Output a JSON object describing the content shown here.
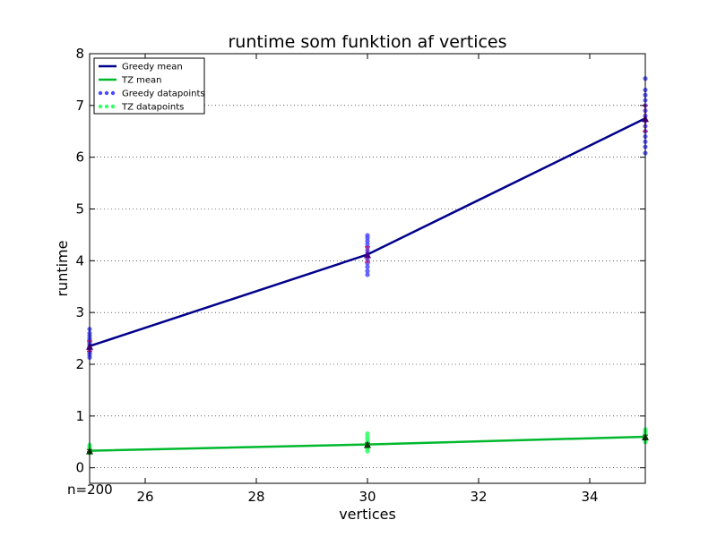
{
  "chart_data": {
    "type": "line",
    "title": "runtime som funktion af vertices",
    "xlabel": "vertices",
    "ylabel": "runtime",
    "xlim": [
      25,
      35
    ],
    "ylim": [
      -0.3,
      8
    ],
    "xticks": [
      26,
      28,
      30,
      32,
      34
    ],
    "yticks": [
      0,
      1,
      2,
      3,
      4,
      5,
      6,
      7,
      8
    ],
    "grid": "horizontal-dotted",
    "legend_position": "top-left",
    "annotation": "n=200",
    "x": [
      25,
      30,
      35
    ],
    "series": [
      {
        "name": "Greedy mean",
        "kind": "mean-line",
        "color": "#00008b",
        "values": [
          2.35,
          4.12,
          6.75
        ],
        "errors": [
          0.1,
          0.15,
          0.25
        ],
        "error_color": "#e0115f",
        "marker_color": "#4b0082"
      },
      {
        "name": "TZ mean",
        "kind": "mean-line",
        "color": "#00b82e",
        "values": [
          0.33,
          0.45,
          0.6
        ],
        "errors": [
          0.02,
          0.03,
          0.03
        ],
        "error_color": "#1a7a1a",
        "marker_color": "#0b3d0b"
      },
      {
        "name": "Greedy datapoints",
        "kind": "scatter",
        "color": "#4a4aff",
        "points": [
          [
            25,
            2.13
          ],
          [
            25,
            2.18
          ],
          [
            25,
            2.22
          ],
          [
            25,
            2.26
          ],
          [
            25,
            2.3
          ],
          [
            25,
            2.34
          ],
          [
            25,
            2.38
          ],
          [
            25,
            2.42
          ],
          [
            25,
            2.46
          ],
          [
            25,
            2.5
          ],
          [
            25,
            2.55
          ],
          [
            25,
            2.6
          ],
          [
            25,
            2.68
          ],
          [
            30,
            3.73
          ],
          [
            30,
            3.8
          ],
          [
            30,
            3.88
          ],
          [
            30,
            3.95
          ],
          [
            30,
            4.02
          ],
          [
            30,
            4.08
          ],
          [
            30,
            4.14
          ],
          [
            30,
            4.2
          ],
          [
            30,
            4.26
          ],
          [
            30,
            4.32
          ],
          [
            30,
            4.38
          ],
          [
            30,
            4.44
          ],
          [
            30,
            4.49
          ],
          [
            35,
            6.08
          ],
          [
            35,
            6.2
          ],
          [
            35,
            6.3
          ],
          [
            35,
            6.4
          ],
          [
            35,
            6.5
          ],
          [
            35,
            6.6
          ],
          [
            35,
            6.7
          ],
          [
            35,
            6.8
          ],
          [
            35,
            6.9
          ],
          [
            35,
            7.0
          ],
          [
            35,
            7.1
          ],
          [
            35,
            7.2
          ],
          [
            35,
            7.3
          ],
          [
            35,
            7.52
          ]
        ]
      },
      {
        "name": "TZ datapoints",
        "kind": "scatter",
        "color": "#33ff66",
        "points": [
          [
            25,
            0.29
          ],
          [
            25,
            0.32
          ],
          [
            25,
            0.35
          ],
          [
            25,
            0.38
          ],
          [
            25,
            0.41
          ],
          [
            25,
            0.44
          ],
          [
            30,
            0.32
          ],
          [
            30,
            0.36
          ],
          [
            30,
            0.4
          ],
          [
            30,
            0.45
          ],
          [
            30,
            0.5
          ],
          [
            30,
            0.55
          ],
          [
            30,
            0.6
          ],
          [
            30,
            0.66
          ],
          [
            35,
            0.5
          ],
          [
            35,
            0.54
          ],
          [
            35,
            0.58
          ],
          [
            35,
            0.62
          ],
          [
            35,
            0.66
          ],
          [
            35,
            0.7
          ],
          [
            35,
            0.74
          ]
        ]
      }
    ]
  }
}
